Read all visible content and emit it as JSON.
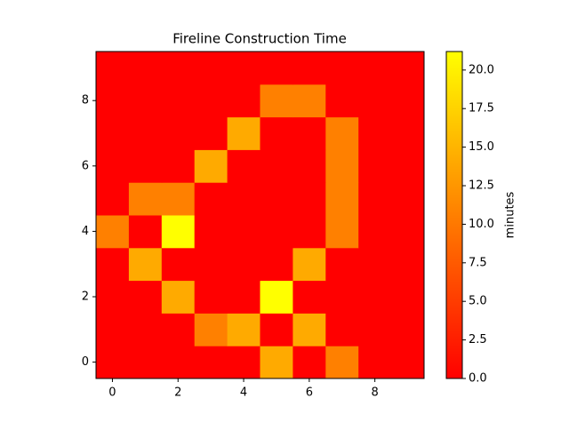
{
  "chart_data": {
    "type": "heatmap",
    "title": "Fireline Construction Time",
    "colormap": "autumn",
    "xlim": [
      -0.5,
      9.5
    ],
    "ylim": [
      -0.5,
      9.5
    ],
    "xticks": [
      0,
      2,
      4,
      6,
      8
    ],
    "yticks": [
      0,
      2,
      4,
      6,
      8
    ],
    "values": [
      [
        0,
        0,
        0,
        0,
        0,
        14.1,
        0,
        10.6,
        0,
        0
      ],
      [
        0,
        0,
        0,
        10.6,
        14.1,
        0,
        14.1,
        0,
        0,
        0
      ],
      [
        0,
        0,
        14.1,
        0,
        0,
        21.2,
        0,
        0,
        0,
        0
      ],
      [
        0,
        14.1,
        0,
        0,
        0,
        0,
        14.1,
        0,
        0,
        0
      ],
      [
        10.6,
        0,
        21.2,
        0,
        0,
        0,
        0,
        10.6,
        0,
        0
      ],
      [
        0,
        10.6,
        10.6,
        0,
        0,
        0,
        0,
        10.6,
        0,
        0
      ],
      [
        0,
        0,
        0,
        14.1,
        0,
        0,
        0,
        10.6,
        0,
        0
      ],
      [
        0,
        0,
        0,
        0,
        14.1,
        0,
        0,
        10.6,
        0,
        0
      ],
      [
        0,
        0,
        0,
        0,
        0,
        10.6,
        10.6,
        0,
        0,
        0
      ],
      [
        0,
        0,
        0,
        0,
        0,
        0,
        0,
        0,
        0,
        0
      ]
    ],
    "colorbar": {
      "label": "minutes",
      "lim": [
        0,
        21.2
      ],
      "ticks": [
        {
          "value": 0,
          "label": "0.0"
        },
        2.5,
        {
          "value": 5,
          "label": "5.0"
        },
        7.5,
        {
          "value": 10,
          "label": "10.0"
        },
        12.5,
        {
          "value": 15,
          "label": "15.0"
        },
        17.5,
        {
          "value": 20,
          "label": "20.0"
        }
      ]
    }
  }
}
